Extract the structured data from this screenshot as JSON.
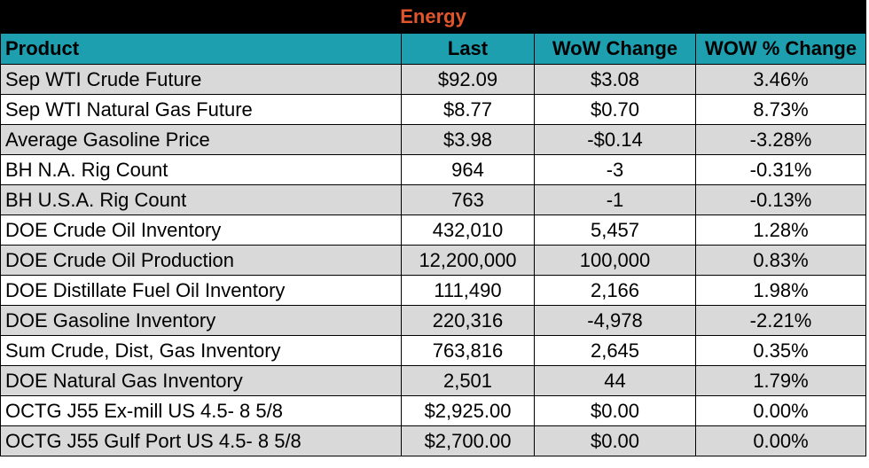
{
  "title": "Energy",
  "columns": [
    "Product",
    "Last",
    "WoW Change",
    "WOW % Change"
  ],
  "rows": [
    {
      "product": "Sep WTI Crude Future",
      "last": "$92.09",
      "wow_change": "$3.08",
      "wow_pct": "3.46%"
    },
    {
      "product": "Sep WTI Natural Gas Future",
      "last": "$8.77",
      "wow_change": "$0.70",
      "wow_pct": "8.73%"
    },
    {
      "product": "Average Gasoline Price",
      "last": "$3.98",
      "wow_change": "-$0.14",
      "wow_pct": "-3.28%"
    },
    {
      "product": "BH N.A. Rig Count",
      "last": "964",
      "wow_change": "-3",
      "wow_pct": "-0.31%"
    },
    {
      "product": "BH U.S.A. Rig Count",
      "last": "763",
      "wow_change": "-1",
      "wow_pct": "-0.13%"
    },
    {
      "product": "DOE Crude Oil Inventory",
      "last": "432,010",
      "wow_change": "5,457",
      "wow_pct": "1.28%"
    },
    {
      "product": "DOE Crude Oil Production",
      "last": "12,200,000",
      "wow_change": "100,000",
      "wow_pct": "0.83%"
    },
    {
      "product": "DOE Distillate Fuel Oil Inventory",
      "last": "111,490",
      "wow_change": "2,166",
      "wow_pct": "1.98%"
    },
    {
      "product": "DOE Gasoline Inventory",
      "last": "220,316",
      "wow_change": "-4,978",
      "wow_pct": "-2.21%"
    },
    {
      "product": "Sum Crude, Dist, Gas Inventory",
      "last": "763,816",
      "wow_change": "2,645",
      "wow_pct": "0.35%"
    },
    {
      "product": "DOE Natural Gas Inventory",
      "last": "2,501",
      "wow_change": "44",
      "wow_pct": "1.79%"
    },
    {
      "product": "OCTG J55 Ex-mill US 4.5- 8 5/8",
      "last": "$2,925.00",
      "wow_change": "$0.00",
      "wow_pct": "0.00%"
    },
    {
      "product": "OCTG J55 Gulf Port US 4.5- 8 5/8",
      "last": "$2,700.00",
      "wow_change": "$0.00",
      "wow_pct": "0.00%"
    }
  ],
  "colors": {
    "title_bg": "#000000",
    "title_text": "#e0552b",
    "header_bg": "#1e9fb0",
    "row_shaded": "#d9d9d9",
    "row_plain": "#ffffff"
  }
}
